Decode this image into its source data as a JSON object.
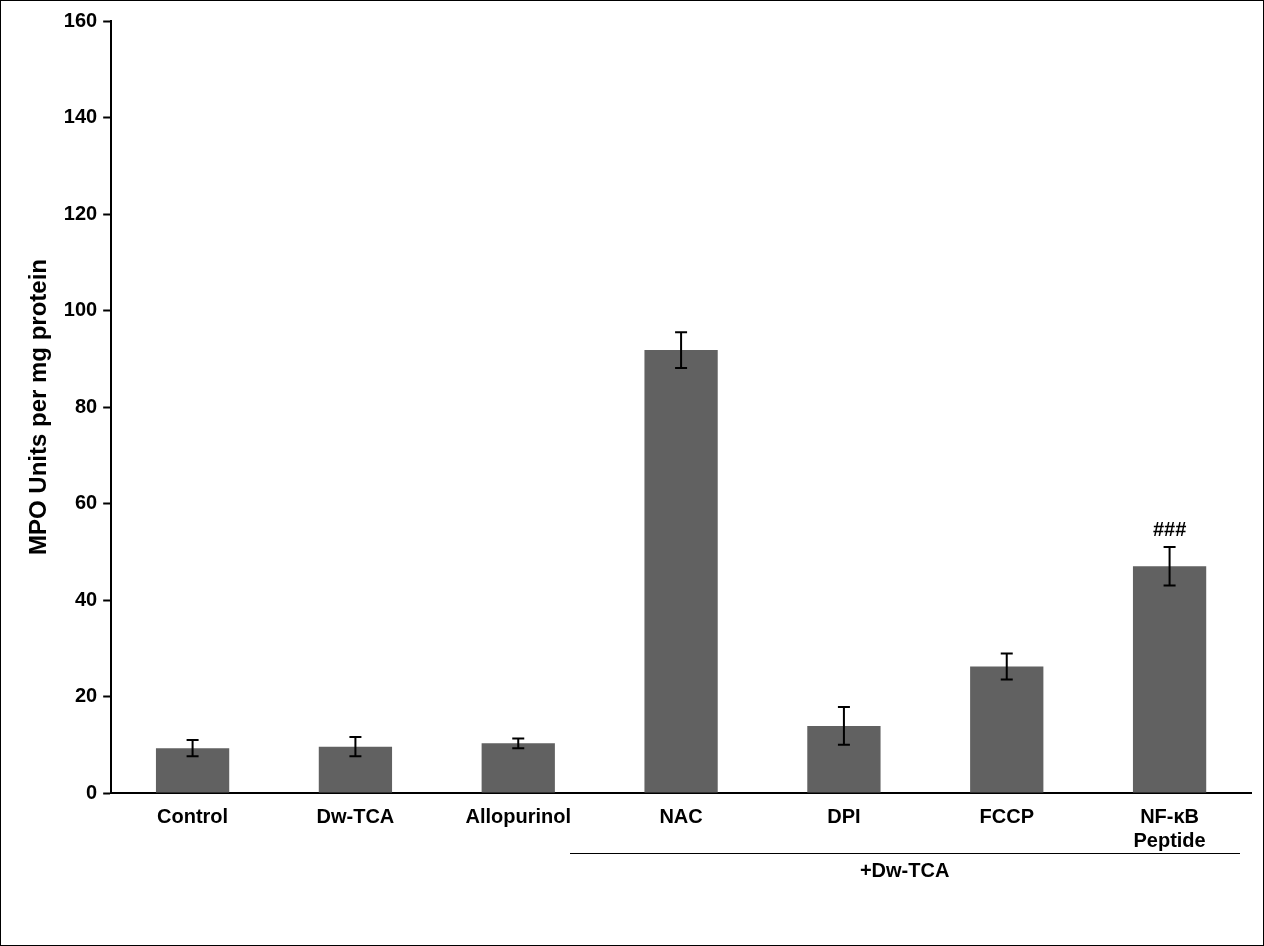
{
  "chart_data": {
    "type": "bar",
    "ylabel": "MPO Units per mg protein",
    "categories": [
      "Control",
      "Dw-TCA",
      "Allopurinol",
      "NAC",
      "DPI",
      "FCCP",
      "NF-κB Peptide"
    ],
    "values": [
      9.3,
      9.6,
      10.3,
      91.8,
      13.9,
      26.2,
      47
    ],
    "errors": [
      1.7,
      2,
      1,
      3.7,
      3.9,
      2.7,
      4
    ],
    "color": "#616161",
    "ylim": [
      0,
      160
    ],
    "yticks": [
      0,
      20,
      40,
      60,
      80,
      100,
      120,
      140,
      160
    ],
    "grid": false,
    "legend": false,
    "annotations": [
      {
        "text": "###",
        "x": "NF-κB Peptide",
        "y": 51
      },
      "+Dw-TCA"
    ]
  }
}
